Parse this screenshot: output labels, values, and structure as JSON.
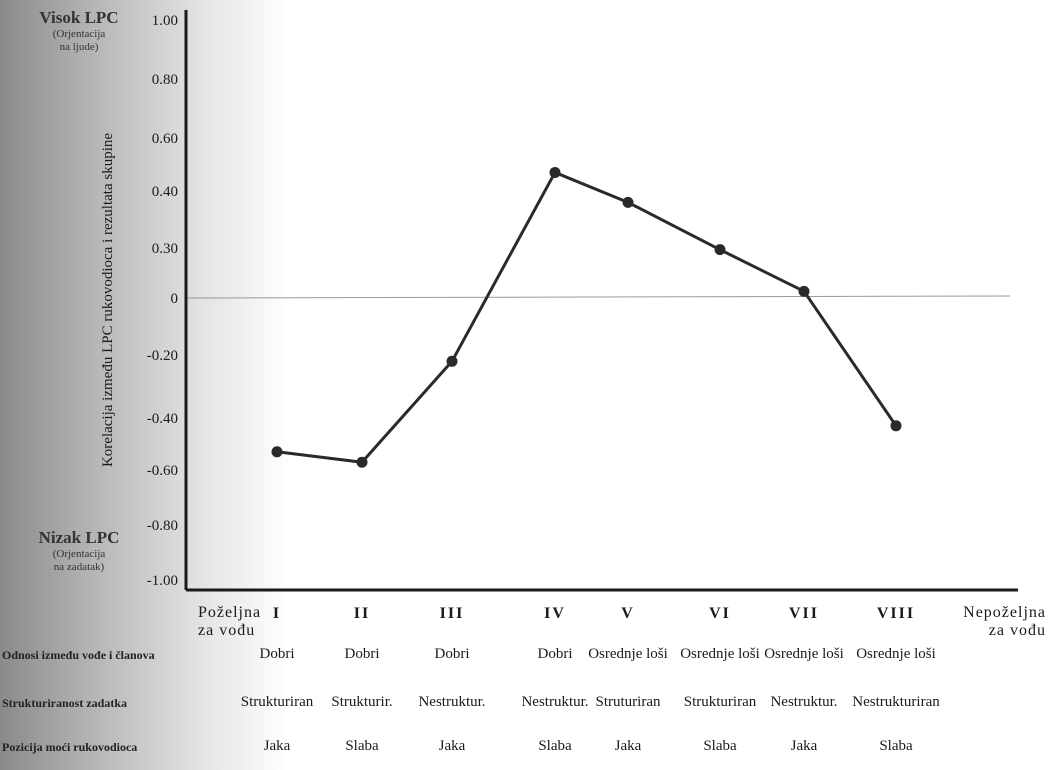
{
  "side_labels": {
    "top": {
      "title": "Visok LPC",
      "sub1": "(Orjentacija",
      "sub2": "na ljude)"
    },
    "bottom": {
      "title": "Nizak LPC",
      "sub1": "(Orjentacija",
      "sub2": "na zadatak)"
    }
  },
  "chart_data": {
    "type": "line",
    "ylabel": "Korelacija između LPC rukovodioca i rezultata skupine",
    "yticks": [
      "1.00",
      "0.80",
      "0.60",
      "0.40",
      "0.30",
      "0",
      "-0.20",
      "-0.40",
      "-0.60",
      "-0.80",
      "-1.00"
    ],
    "categories": [
      "I",
      "II",
      "III",
      "IV",
      "V",
      "VI",
      "VII",
      "VIII"
    ],
    "x_end_labels": {
      "left": [
        "Poželjna",
        "za vođu"
      ],
      "right": [
        "Nepoželjna",
        "za vođu"
      ]
    },
    "series": [
      {
        "values": [
          -0.53,
          -0.57,
          -0.22,
          0.47,
          0.38,
          0.29,
          0.04,
          -0.43
        ]
      }
    ],
    "grid": false,
    "colors": {
      "line": "#2a2a2a",
      "axis": "#1a1a1a",
      "zero_line": "#999999"
    }
  },
  "rows": [
    {
      "label": "Odnosi između vođe i članova",
      "cells": [
        "Dobri",
        "Dobri",
        "Dobri",
        "Dobri",
        "Osrednje loši",
        "Osrednje loši",
        "Osrednje loši",
        "Osrednje loši"
      ]
    },
    {
      "label": "Strukturiranost zadatka",
      "cells": [
        "Strukturiran",
        "Strukturir.",
        "Nestruktur.",
        "Nestruktur.",
        "Struturiran",
        "Strukturiran",
        "Nestruktur.",
        "Nestrukturiran"
      ]
    },
    {
      "label": "Pozicija moći rukovodioca",
      "cells": [
        "Jaka",
        "Slaba",
        "Jaka",
        "Slaba",
        "Jaka",
        "Slaba",
        "Jaka",
        "Slaba"
      ]
    }
  ]
}
